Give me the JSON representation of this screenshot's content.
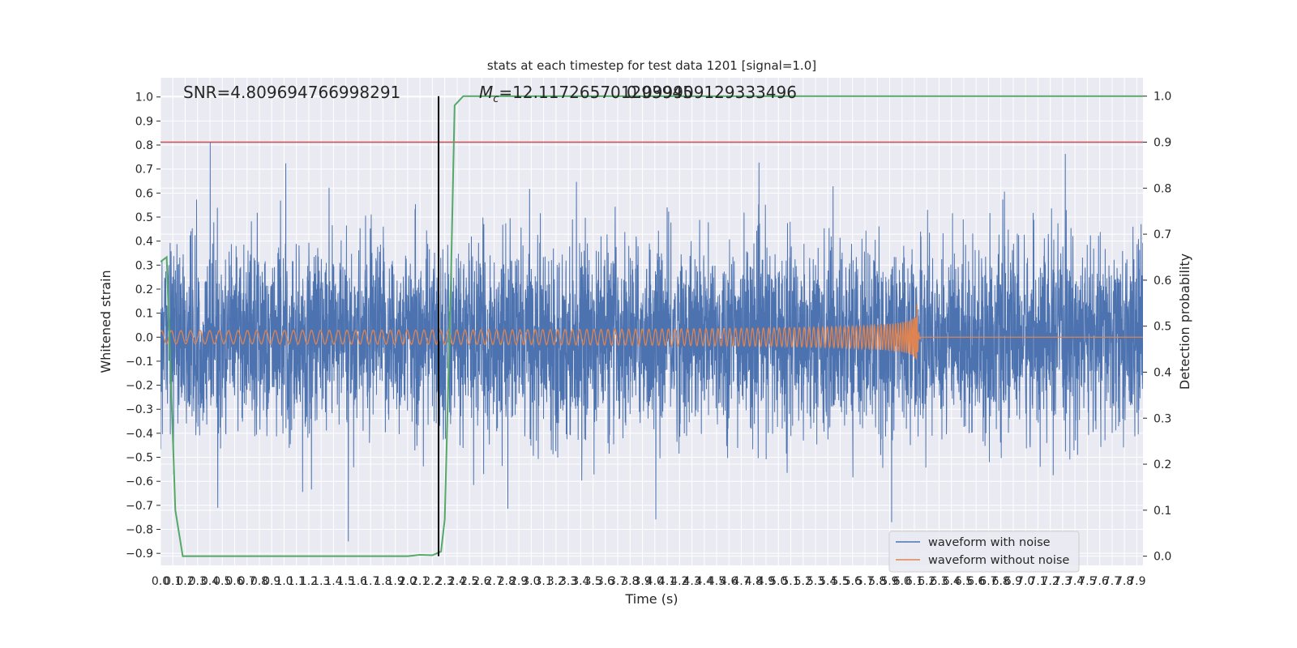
{
  "chart_data": {
    "type": "line",
    "title": "stats at each timestep for test data 1201 [signal=1.0]",
    "xlabel": "Time (s)",
    "ylabel": "Whitened strain",
    "ylabel_right": "Detection probability",
    "annotations": {
      "snr": "SNR=4.809694766998291",
      "mc_prefix": "M",
      "mc_sub": "c",
      "mc_value": "=12.117265701293945",
      "mc_overlap": "0.099909129333496"
    },
    "xlim": [
      0.0,
      7.95
    ],
    "ylim": [
      -0.95,
      1.08
    ],
    "ylim_right": [
      -0.02,
      1.04
    ],
    "x_ticks": [
      "0.0",
      "0.1",
      "0.2",
      "0.3",
      "0.4",
      "0.5",
      "0.6",
      "0.7",
      "0.8",
      "0.9",
      "1.0",
      "1.1",
      "1.2",
      "1.3",
      "1.4",
      "1.5",
      "1.6",
      "1.7",
      "1.8",
      "1.9",
      "2.0",
      "2.1",
      "2.2",
      "2.3",
      "2.4",
      "2.5",
      "2.6",
      "2.7",
      "2.8",
      "2.9",
      "3.0",
      "3.1",
      "3.2",
      "3.3",
      "3.4",
      "3.5",
      "3.6",
      "3.7",
      "3.8",
      "3.9",
      "4.0",
      "4.1",
      "4.2",
      "4.3",
      "4.4",
      "4.5",
      "4.6",
      "4.7",
      "4.8",
      "4.9",
      "5.0",
      "5.1",
      "5.2",
      "5.3",
      "5.4",
      "5.5",
      "5.6",
      "5.7",
      "5.8",
      "5.9",
      "6.0",
      "6.1",
      "6.2",
      "6.3",
      "6.4",
      "6.5",
      "6.6",
      "6.7",
      "6.8",
      "6.9",
      "7.0",
      "7.1",
      "7.2",
      "7.3",
      "7.4",
      "7.5",
      "7.6",
      "7.7",
      "7.8",
      "7.9"
    ],
    "y_ticks": [
      "−0.9",
      "−0.8",
      "−0.7",
      "−0.6",
      "−0.5",
      "−0.4",
      "−0.3",
      "−0.2",
      "−0.1",
      "0.0",
      "0.1",
      "0.2",
      "0.3",
      "0.4",
      "0.5",
      "0.6",
      "0.7",
      "0.8",
      "0.9",
      "1.0"
    ],
    "y_ticks_right": [
      "0.0",
      "0.1",
      "0.2",
      "0.3",
      "0.4",
      "0.5",
      "0.6",
      "0.7",
      "0.8",
      "0.9",
      "1.0"
    ],
    "series": [
      {
        "name": "waveform with noise",
        "color": "#4c72b0",
        "description": "dense noise, band mostly within ±0.35 with spikes up to about 0.85",
        "peak_max": 0.83,
        "peak_min": -0.85
      },
      {
        "name": "waveform without noise",
        "color": "#dd8452",
        "chirp_start": 0.0,
        "merger_time": 6.12,
        "peak_amplitude": 0.17
      },
      {
        "color": "#55a868",
        "axis": "right",
        "x": [
          0.0,
          0.05,
          0.12,
          0.18,
          2.0,
          2.1,
          2.2,
          2.27,
          2.3,
          2.35,
          2.38,
          2.45,
          7.95
        ],
        "y": [
          0.64,
          0.65,
          0.1,
          0.0,
          0.0,
          0.003,
          0.002,
          0.01,
          0.08,
          0.6,
          0.98,
          1.0,
          1.0
        ]
      }
    ],
    "lines": [
      {
        "orientation": "horizontal",
        "axis": "right",
        "value": 0.9,
        "color": "#c44e52"
      },
      {
        "orientation": "vertical",
        "value": 2.25,
        "color": "#000000"
      }
    ],
    "legend": {
      "position": "lower-right",
      "entries": [
        "waveform with noise",
        "waveform without noise"
      ]
    },
    "grid": true
  },
  "colors": {
    "axes_bg": "#eaeaf2",
    "grid": "#ffffff",
    "text": "#262626"
  }
}
